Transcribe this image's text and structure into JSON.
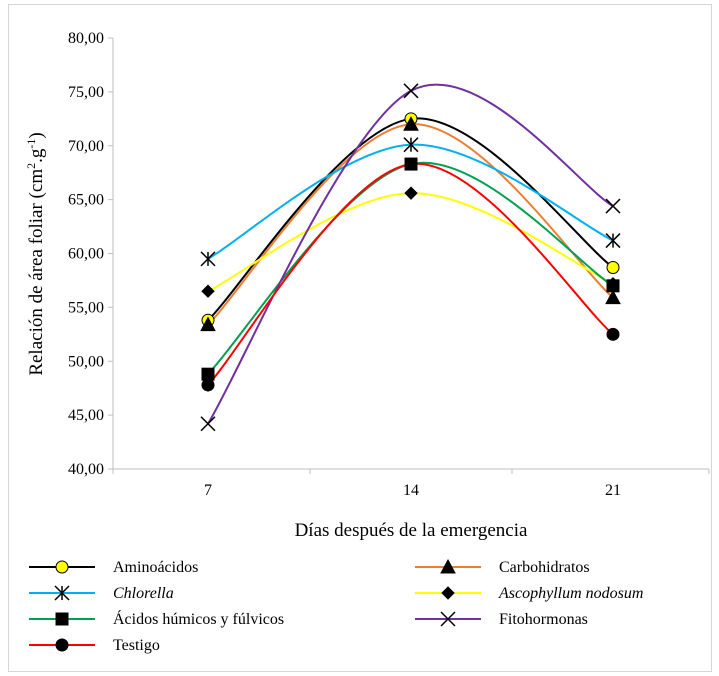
{
  "chart_data": {
    "type": "line",
    "x": [
      7,
      14,
      21
    ],
    "x_tick_labels": [
      "7",
      "14",
      "21"
    ],
    "xlabel": "Días después de la emergencia",
    "ylabel": {
      "main": "Relación de área foliar (cm",
      "sup1": "2",
      "middle": ".g",
      "sup2": "-1",
      "end": ")"
    },
    "ylim": [
      40,
      80
    ],
    "y_tick_labels": [
      "40,00",
      "45,00",
      "50,00",
      "55,00",
      "60,00",
      "65,00",
      "70,00",
      "75,00",
      "80,00"
    ],
    "grid": false,
    "smooth": true,
    "legend_position": "bottom",
    "series": [
      {
        "name": "Aminoácidos",
        "italic": false,
        "color": "#000000",
        "marker": "circle",
        "marker_fill": "#ffff00",
        "values": [
          53.8,
          72.5,
          58.7
        ]
      },
      {
        "name": "Carbohidratos",
        "italic": false,
        "color": "#ed7d31",
        "marker": "triangle",
        "marker_fill": "#000000",
        "values": [
          53.4,
          72.0,
          55.9
        ]
      },
      {
        "name": "Chlorella",
        "italic": true,
        "color": "#00b0f0",
        "marker": "asterisk",
        "marker_fill": "#000000",
        "values": [
          59.5,
          70.1,
          61.2
        ]
      },
      {
        "name": "Ascophyllum nodosum",
        "italic": true,
        "color": "#ffff00",
        "marker": "diamond",
        "marker_fill": "#000000",
        "values": [
          56.5,
          65.6,
          57.2
        ]
      },
      {
        "name": "Ácidos húmicos y fúlvicos",
        "italic": false,
        "color": "#00a050",
        "marker": "square",
        "marker_fill": "#000000",
        "values": [
          48.8,
          68.3,
          57.0
        ]
      },
      {
        "name": "Fitohormonas",
        "italic": false,
        "color": "#7030a0",
        "marker": "x",
        "marker_fill": "#000000",
        "values": [
          44.2,
          75.1,
          64.4
        ]
      },
      {
        "name": "Testigo",
        "italic": false,
        "color": "#ff0000",
        "marker": "circle",
        "marker_fill": "#000000",
        "values": [
          47.8,
          68.3,
          52.5
        ]
      }
    ]
  }
}
